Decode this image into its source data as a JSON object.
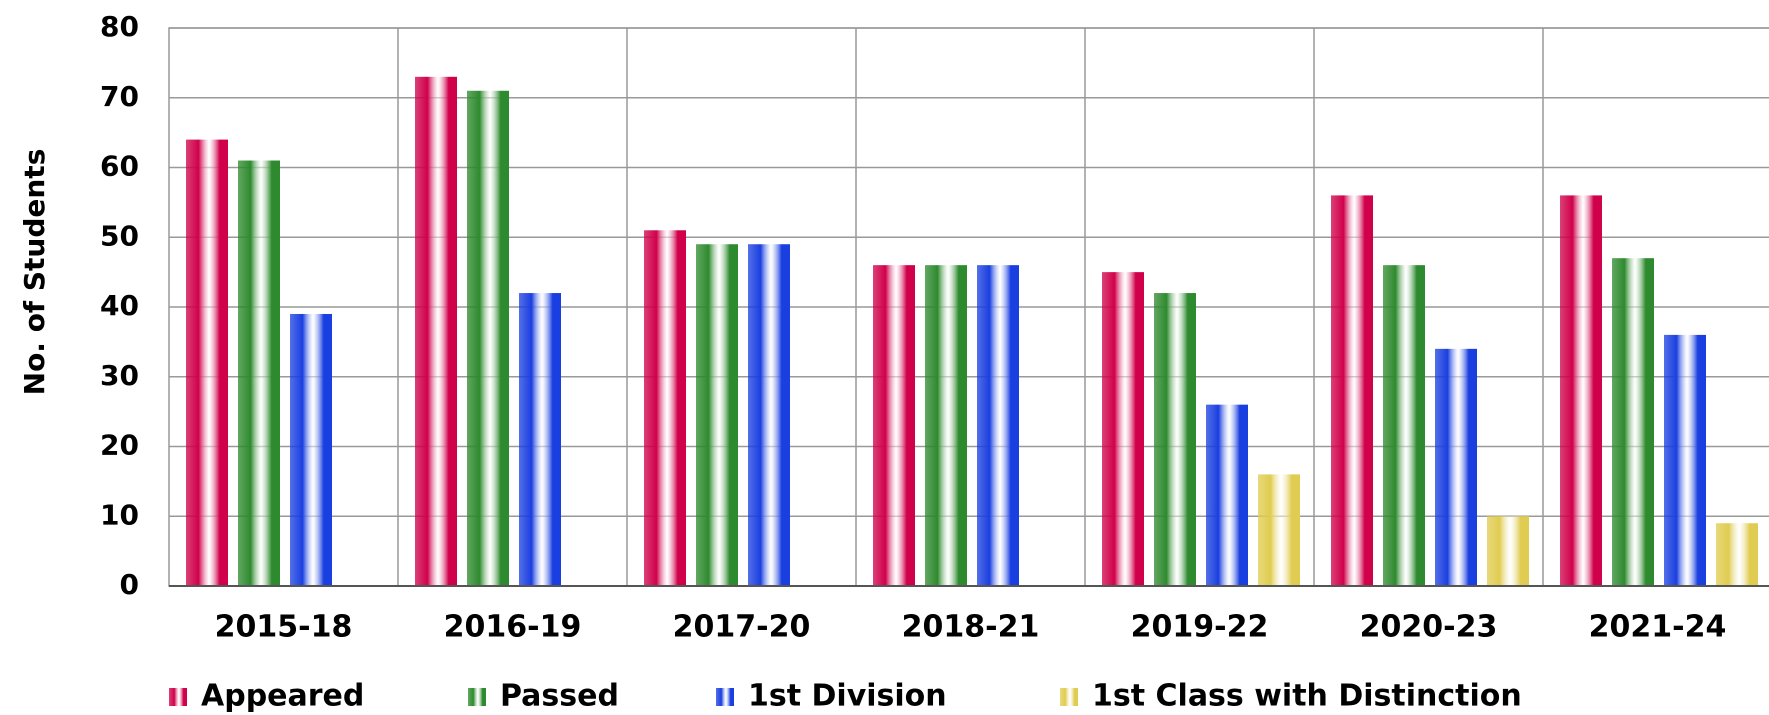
{
  "chart_data": {
    "type": "bar",
    "y_label": "No. of Students",
    "categories": [
      "2015-18",
      "2016-19",
      "2017-20",
      "2018-21",
      "2019-22",
      "2020-23",
      "2021-24"
    ],
    "series": [
      {
        "name": "Appeared",
        "color": "#d0004a",
        "values": [
          64,
          73,
          51,
          46,
          45,
          56,
          56
        ]
      },
      {
        "name": "Passed",
        "color": "#2e8a2e",
        "values": [
          61,
          71,
          49,
          46,
          42,
          46,
          47
        ]
      },
      {
        "name": "1st Division",
        "color": "#1a3fe0",
        "values": [
          39,
          42,
          49,
          46,
          26,
          34,
          36
        ]
      },
      {
        "name": "1st Class with Distinction",
        "color": "#e0cc50",
        "values": [
          null,
          null,
          null,
          null,
          16,
          10,
          9
        ]
      }
    ],
    "ylim": [
      0,
      80
    ],
    "yticks": [
      0,
      10,
      20,
      30,
      40,
      50,
      60,
      70,
      80
    ],
    "grid": true,
    "legend": "bottom"
  }
}
